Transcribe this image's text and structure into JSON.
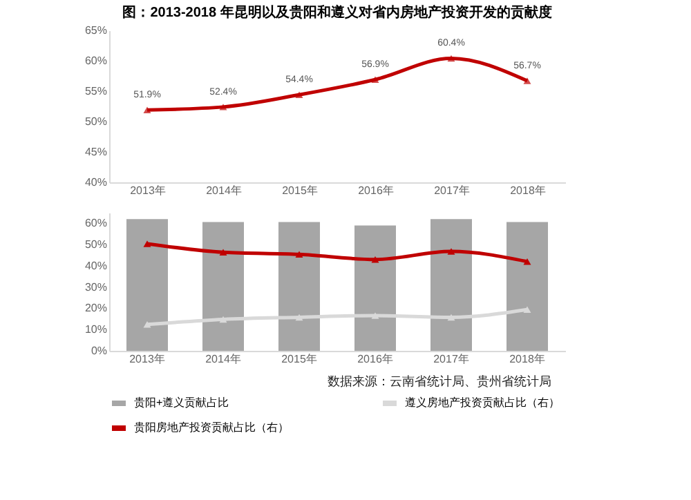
{
  "chart_data": [
    {
      "type": "line",
      "title": "图：2013-2018 年昆明以及贵阳和遵义对省内房地产投资开发的贡献度",
      "categories": [
        "2013年",
        "2014年",
        "2015年",
        "2016年",
        "2017年",
        "2018年"
      ],
      "values": [
        51.9,
        52.4,
        54.4,
        56.9,
        60.4,
        56.7
      ],
      "value_labels": [
        "51.9%",
        "52.4%",
        "54.4%",
        "56.9%",
        "60.4%",
        "56.7%"
      ],
      "color": "#c00000",
      "marker": "triangle",
      "ylim": [
        40,
        65
      ],
      "yticks": [
        {
          "value": 40,
          "label": "40%"
        },
        {
          "value": 45,
          "label": "45%"
        },
        {
          "value": 50,
          "label": "50%"
        },
        {
          "value": 55,
          "label": "55%"
        },
        {
          "value": 60,
          "label": "60%"
        },
        {
          "value": 65,
          "label": "65%"
        }
      ],
      "grid": false
    },
    {
      "type": "bar",
      "categories": [
        "2013年",
        "2014年",
        "2015年",
        "2016年",
        "2017年",
        "2018年"
      ],
      "ylim": [
        0,
        65
      ],
      "yticks": [
        {
          "value": 0,
          "label": "0%"
        },
        {
          "value": 10,
          "label": "10%"
        },
        {
          "value": 20,
          "label": "20%"
        },
        {
          "value": 30,
          "label": "30%"
        },
        {
          "value": 40,
          "label": "40%"
        },
        {
          "value": 50,
          "label": "50%"
        },
        {
          "value": 60,
          "label": "60%"
        }
      ],
      "grid": false,
      "legend": "bottom",
      "series": [
        {
          "name": "贵阳+遵义贡献占比",
          "type": "bar",
          "color": "#a6a6a6",
          "values": [
            62,
            60.6,
            60.6,
            59,
            62,
            60.6
          ]
        },
        {
          "name": "遵义房地产投资贡献占比（右）",
          "type": "line",
          "color": "#d9d9d9",
          "marker": "triangle",
          "values": [
            12.4,
            14.8,
            15.8,
            16.6,
            15.8,
            19.4
          ]
        },
        {
          "name": "贵阳房地产投资贡献占比（右）",
          "type": "line",
          "color": "#c00000",
          "marker": "triangle",
          "values": [
            50.4,
            46.4,
            45.4,
            43,
            46.8,
            42
          ]
        }
      ],
      "annotations": [
        "数据来源：云南省统计局、贵州省统计局"
      ]
    }
  ]
}
